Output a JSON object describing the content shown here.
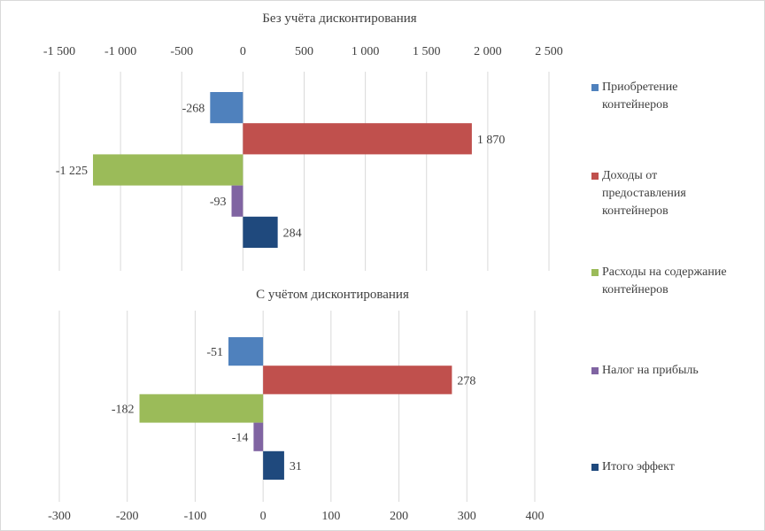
{
  "chart_data": [
    {
      "type": "bar",
      "orientation": "horizontal",
      "title": "Без учёта дисконтирования",
      "xlim": [
        -1500,
        2500
      ],
      "ticks": [
        -1500,
        -1000,
        -500,
        0,
        500,
        1000,
        1500,
        2000,
        2500
      ],
      "tick_labels": [
        "-1 500",
        "-1 000",
        "-500",
        "0",
        "500",
        "1 000",
        "1 500",
        "2 000",
        "2 500"
      ],
      "axis_position": "top",
      "grid": true,
      "values": [
        -268,
        1870,
        -1225,
        -93,
        284
      ],
      "value_labels": [
        "-268",
        "1 870",
        "-1 225",
        "-93",
        "284"
      ]
    },
    {
      "type": "bar",
      "orientation": "horizontal",
      "title": "С учётом дисконтирования",
      "xlim": [
        -300,
        400
      ],
      "ticks": [
        -300,
        -200,
        -100,
        0,
        100,
        200,
        300,
        400
      ],
      "tick_labels": [
        "-300",
        "-200",
        "-100",
        "0",
        "100",
        "200",
        "300",
        "400"
      ],
      "axis_position": "bottom",
      "grid": true,
      "values": [
        -51,
        278,
        -182,
        -14,
        31
      ],
      "value_labels": [
        "-51",
        "278",
        "-182",
        "-14",
        "31"
      ]
    }
  ],
  "series": [
    {
      "name": "Приобретение контейнеров",
      "lines": [
        "Приобретение",
        "контейнеров"
      ],
      "color": "#4F81BD"
    },
    {
      "name": "Доходы от предоставления контейнеров",
      "lines": [
        "Доходы от",
        "предоставления",
        "контейнеров"
      ],
      "color": "#C0504D"
    },
    {
      "name": "Расходы на содержание контейнеров",
      "lines": [
        "Расходы на содержание",
        "контейнеров"
      ],
      "color": "#9BBB59"
    },
    {
      "name": "Налог на прибыль",
      "lines": [
        "Налог на прибыль"
      ],
      "color": "#8064A2"
    },
    {
      "name": "Итого эффект",
      "lines": [
        "Итого эффект"
      ],
      "color": "#1F497D"
    }
  ],
  "legend_position": "right"
}
